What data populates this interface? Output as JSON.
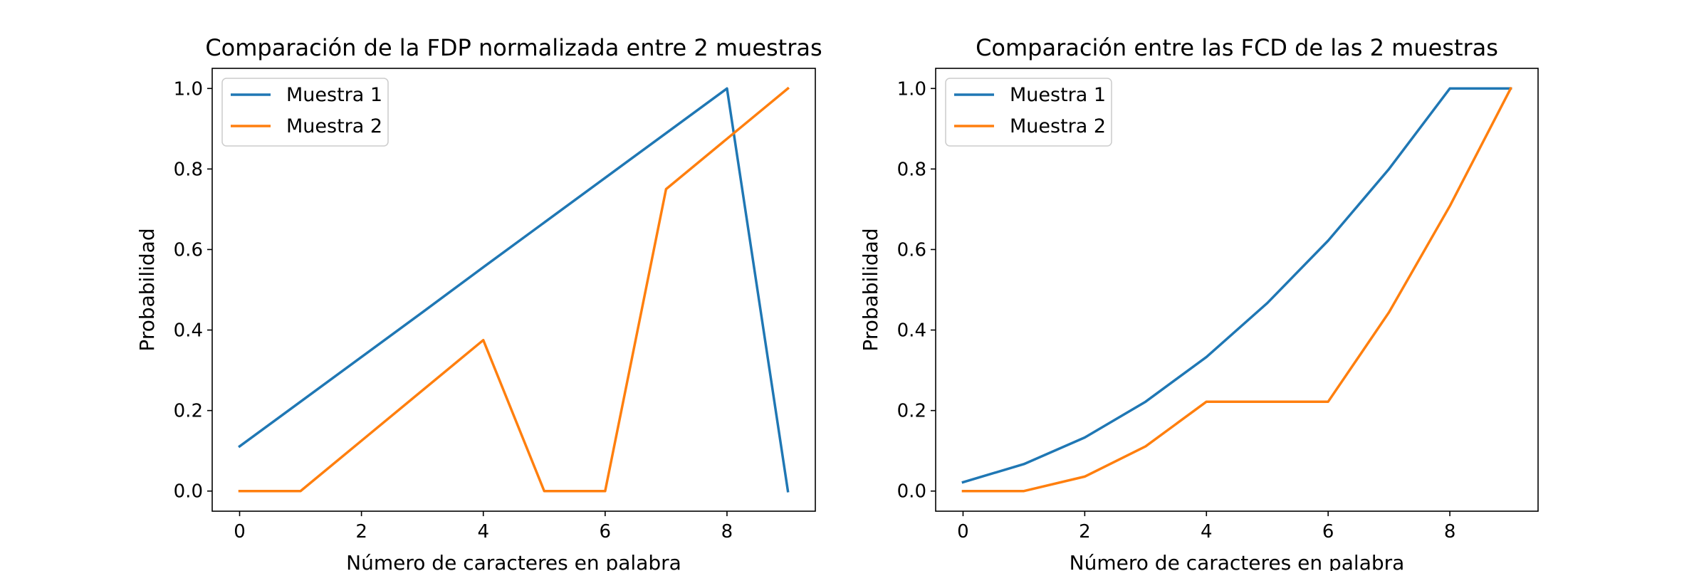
{
  "chart_data": [
    {
      "type": "line",
      "title": "Comparación de la FDP normalizada entre 2 muestras",
      "xlabel": "Número de caracteres en palabra",
      "ylabel": "Probabilidad",
      "xlim": [
        -0.45,
        9.45
      ],
      "ylim": [
        -0.05,
        1.05
      ],
      "xticks": [
        0,
        2,
        4,
        6,
        8
      ],
      "xtick_labels": [
        "0",
        "2",
        "4",
        "6",
        "8"
      ],
      "yticks": [
        0.0,
        0.2,
        0.4,
        0.6,
        0.8,
        1.0
      ],
      "ytick_labels": [
        "0.0",
        "0.2",
        "0.4",
        "0.6",
        "0.8",
        "1.0"
      ],
      "grid": false,
      "legend": "upper left",
      "x": [
        0,
        1,
        2,
        3,
        4,
        5,
        6,
        7,
        8,
        9
      ],
      "series": [
        {
          "name": "Muestra 1",
          "color": "#1f77b4",
          "values": [
            0.111,
            0.222,
            0.333,
            0.444,
            0.556,
            0.667,
            0.778,
            0.889,
            1.0,
            0.0
          ]
        },
        {
          "name": "Muestra 2",
          "color": "#ff7f0e",
          "values": [
            0.0,
            0.0,
            0.125,
            0.25,
            0.375,
            0.0,
            0.0,
            0.75,
            0.875,
            1.0
          ]
        }
      ]
    },
    {
      "type": "line",
      "title": "Comparación entre las FCD de las 2 muestras",
      "xlabel": "Número de caracteres en palabra",
      "ylabel": "Probabilidad",
      "xlim": [
        -0.45,
        9.45
      ],
      "ylim": [
        -0.05,
        1.05
      ],
      "xticks": [
        0,
        2,
        4,
        6,
        8
      ],
      "xtick_labels": [
        "0",
        "2",
        "4",
        "6",
        "8"
      ],
      "yticks": [
        0.0,
        0.2,
        0.4,
        0.6,
        0.8,
        1.0
      ],
      "ytick_labels": [
        "0.0",
        "0.2",
        "0.4",
        "0.6",
        "0.8",
        "1.0"
      ],
      "grid": false,
      "legend": "upper left",
      "x": [
        0,
        1,
        2,
        3,
        4,
        5,
        6,
        7,
        8,
        9
      ],
      "series": [
        {
          "name": "Muestra 1",
          "color": "#1f77b4",
          "values": [
            0.022,
            0.067,
            0.133,
            0.222,
            0.333,
            0.467,
            0.622,
            0.8,
            1.0,
            1.0
          ]
        },
        {
          "name": "Muestra 2",
          "color": "#ff7f0e",
          "values": [
            0.0,
            0.0,
            0.036,
            0.111,
            0.222,
            0.222,
            0.222,
            0.444,
            0.708,
            1.0
          ]
        }
      ]
    }
  ]
}
